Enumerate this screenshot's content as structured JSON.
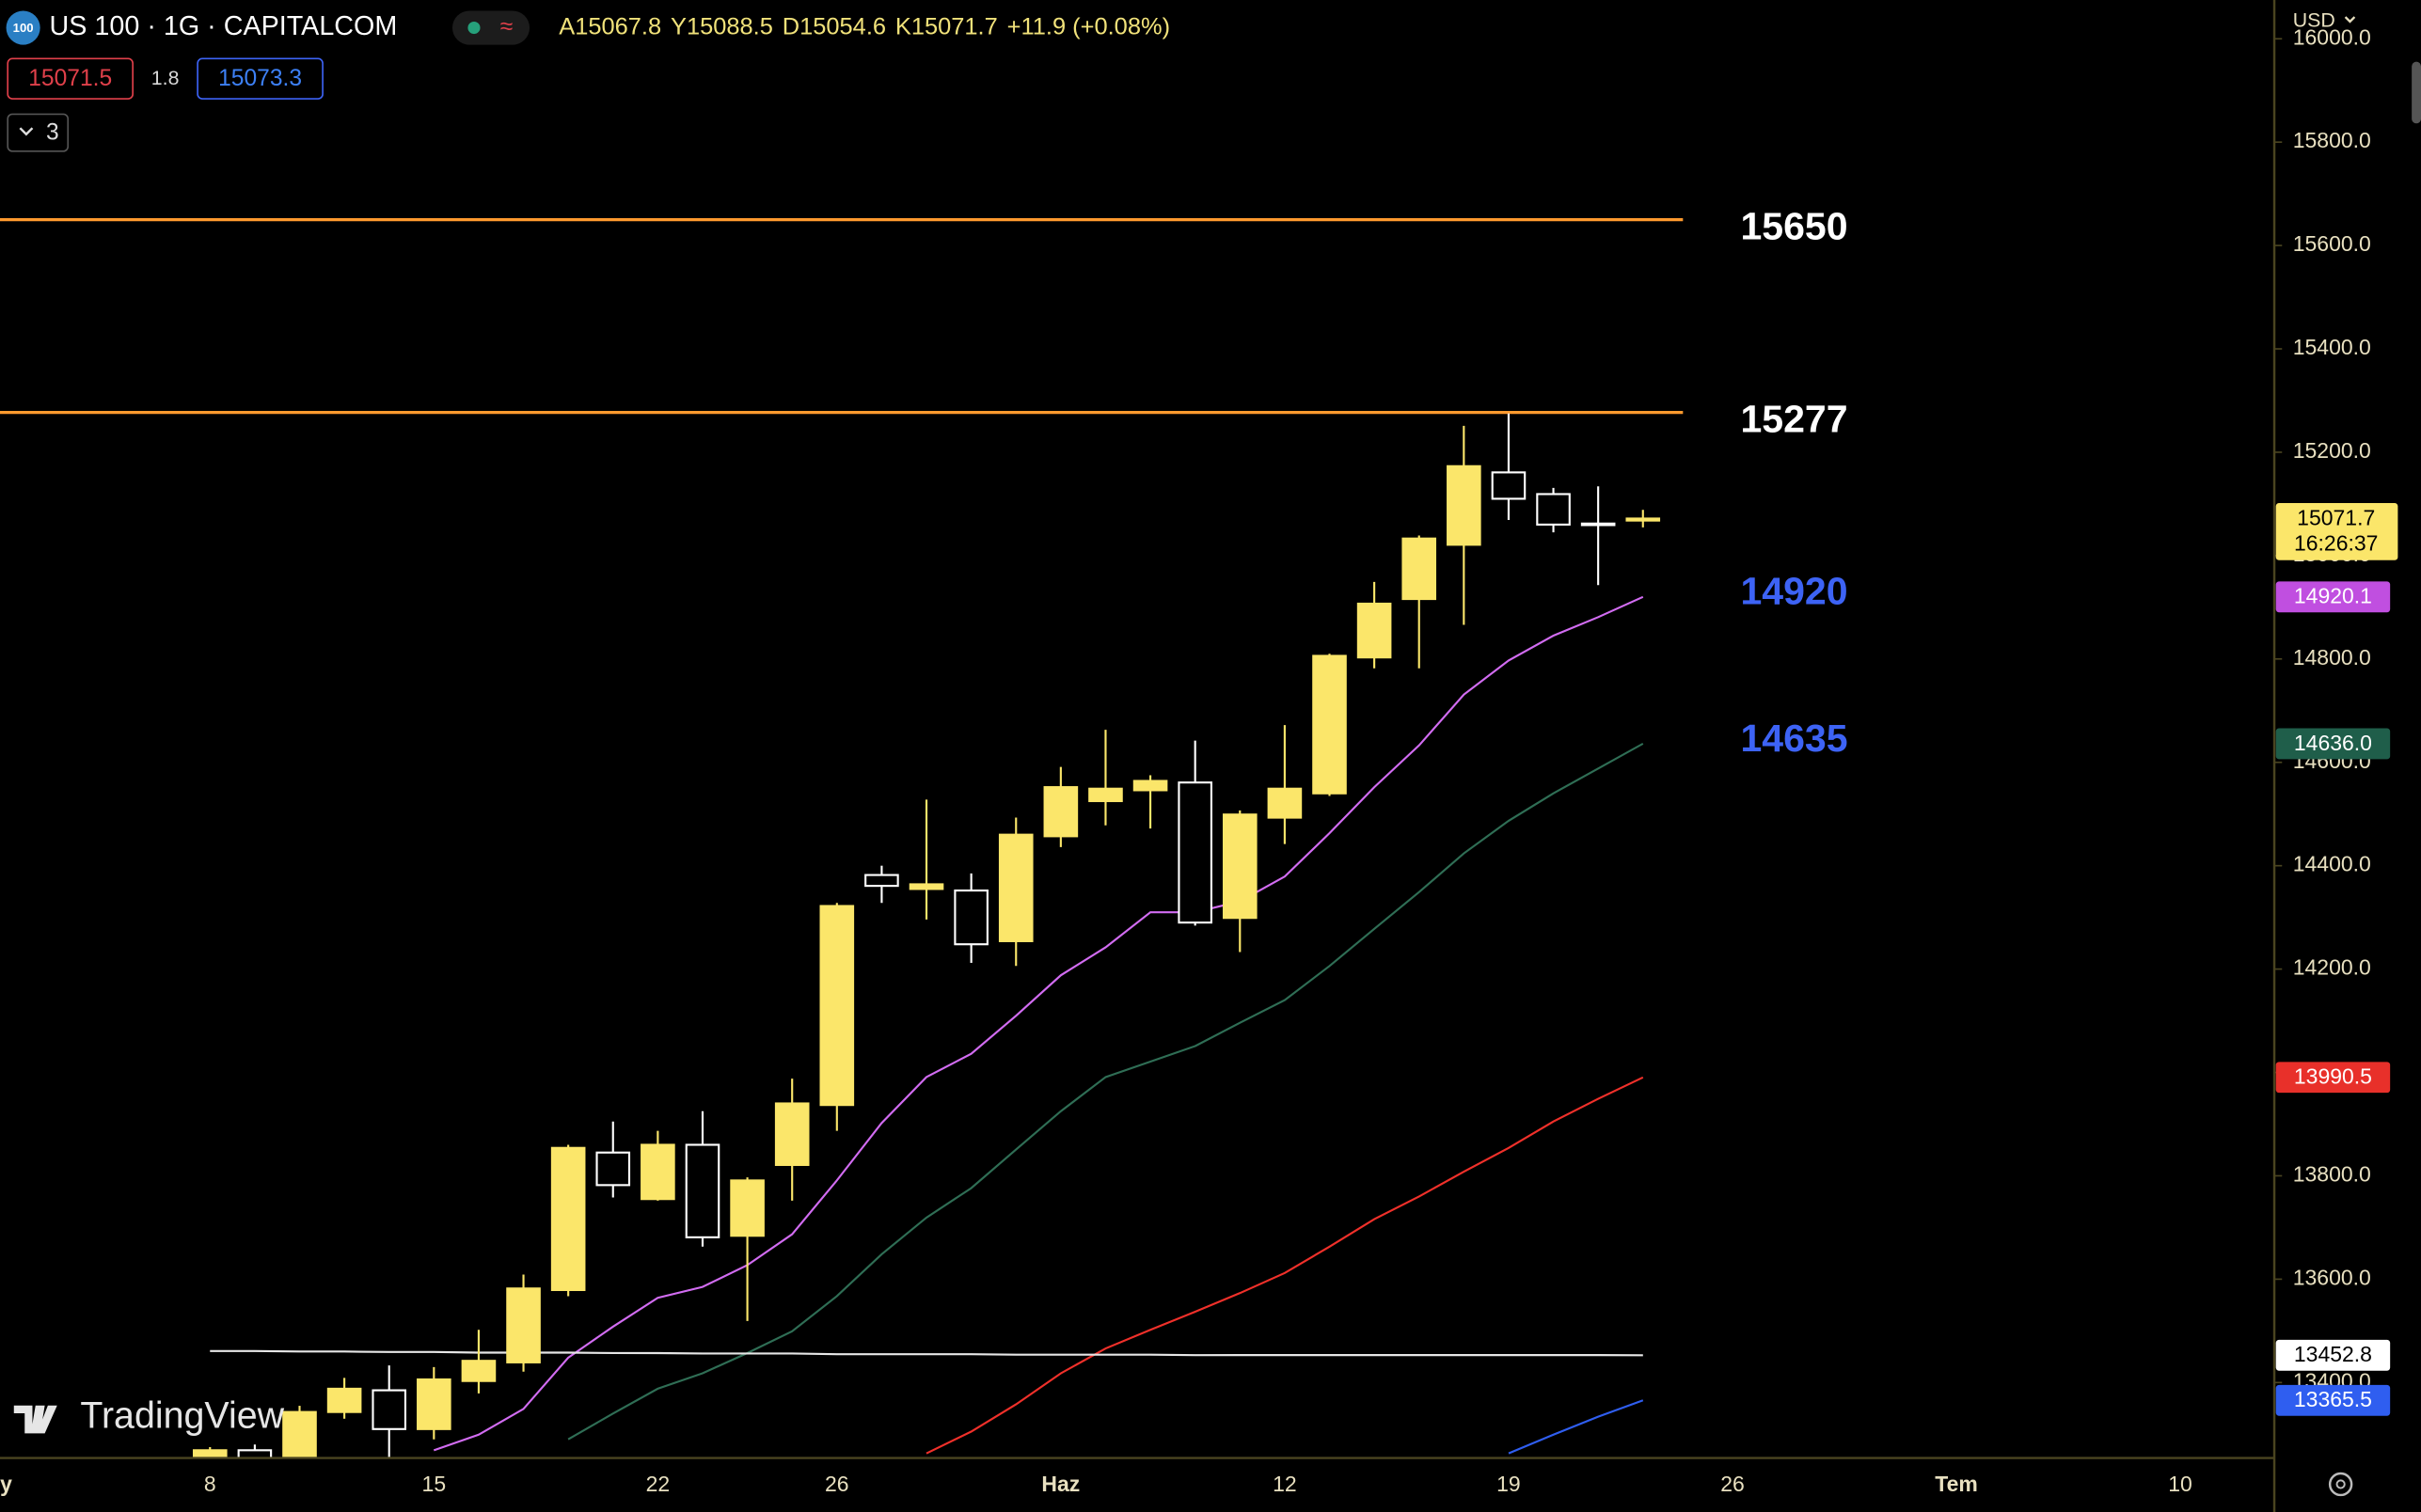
{
  "chart_data": {
    "type": "candlestick",
    "symbol": "US 100 · 1G · CAPITALCOM",
    "symbol_icon": "100",
    "legend_labels": {
      "open": "A",
      "high": "Y",
      "low": "D",
      "close": "K"
    },
    "change": "+11.9 (+0.08%)",
    "sell_price": "15071.5",
    "spread": "1.8",
    "buy_price": "15073.3",
    "indicator_count": "3",
    "currency": "USD",
    "countdown": "16:26:37",
    "brand": "TradingView",
    "categories": [
      "8",
      null,
      null,
      null,
      null,
      "15",
      null,
      null,
      null,
      null,
      "22",
      null,
      null,
      null,
      "26",
      null,
      null,
      null,
      null,
      "Haz",
      null,
      null,
      null,
      null,
      "12",
      null,
      null,
      null,
      null,
      "19",
      null,
      null,
      null
    ],
    "xlim": [
      -4.69,
      46.1
    ],
    "xticks": [
      {
        "value": -5,
        "label": "y"
      },
      {
        "value": 34,
        "label": "26"
      },
      {
        "value": 39,
        "label": "Tem"
      },
      {
        "value": 44,
        "label": "10"
      }
    ],
    "ylim": [
      13254,
      16075
    ],
    "yticks": [
      {
        "value": 13400,
        "label": "13400.0"
      },
      {
        "value": 13600,
        "label": "13600.0"
      },
      {
        "value": 13800,
        "label": "13800.0"
      },
      {
        "value": 14000,
        "label": "14000.0"
      },
      {
        "value": 14200,
        "label": "14200.0"
      },
      {
        "value": 14400,
        "label": "14400.0"
      },
      {
        "value": 14600,
        "label": "14600.0"
      },
      {
        "value": 14800,
        "label": "14800.0"
      },
      {
        "value": 15000,
        "label": "15000.0"
      },
      {
        "value": 15200,
        "label": "15200.0"
      },
      {
        "value": 15400,
        "label": "15400.0"
      },
      {
        "value": 15600,
        "label": "15600.0"
      },
      {
        "value": 15800,
        "label": "15800.0"
      },
      {
        "value": 16000,
        "label": "16000.0"
      }
    ],
    "up_color": "#fbe66a",
    "down_color": "#ffffff",
    "ohlc": {
      "open": [
        13254,
        13269,
        13250,
        13343,
        13385,
        13310,
        13403,
        13439,
        13579,
        13845,
        13755,
        13860,
        13684,
        13821,
        13937,
        14382,
        14355,
        14352,
        14254,
        14457,
        14525,
        14546,
        14561,
        14299,
        14493,
        14540,
        14803,
        14916,
        15021,
        15161,
        15119,
        15062,
        15067.8
      ],
      "high": [
        13275,
        13280,
        13355,
        13409,
        13433,
        13430,
        13502,
        13609,
        13860,
        13905,
        13887,
        13925,
        13797,
        13988,
        14328,
        14400,
        14528,
        14385,
        14493,
        14591,
        14663,
        14575,
        14642,
        14507,
        14672,
        14810,
        14949,
        15039,
        15251,
        15275,
        15131,
        15134,
        15088.5
      ],
      "low": [
        13230,
        13240,
        13240,
        13330,
        13250,
        13290,
        13379,
        13421,
        13567,
        13758,
        13752,
        13663,
        13519,
        13752,
        13887,
        14328,
        14296,
        14212,
        14206,
        14436,
        14478,
        14472,
        14284,
        14233,
        14442,
        14535,
        14782,
        14782,
        14866,
        15069,
        15045,
        14943,
        15054.6
      ],
      "close": [
        13269,
        13254,
        13343,
        13388,
        13310,
        13406,
        13442,
        13582,
        13854,
        13782,
        13860,
        13681,
        13791,
        13940,
        14322,
        14361,
        14364,
        14248,
        14460,
        14552,
        14549,
        14564,
        14290,
        14499,
        14549,
        14806,
        14907,
        15033,
        15173,
        15110,
        15060,
        15060,
        15071.7
      ]
    },
    "series": [
      {
        "color": "#d26cf2",
        "badge_color": "#c04fe0",
        "label_color": "#ffffff",
        "last_label": "14920.1",
        "values": [
          null,
          null,
          null,
          null,
          null,
          13269,
          13299,
          13349,
          13448,
          13508,
          13564,
          13585,
          13627,
          13687,
          13791,
          13902,
          13991,
          14036,
          14110,
          14188,
          14242,
          14310,
          14310,
          14331,
          14379,
          14463,
          14552,
          14633,
          14731,
          14797,
          14845,
          14881,
          14920.1
        ]
      },
      {
        "color": "#2f6e55",
        "badge_color": "#1f5e4a",
        "label_color": "#ffffff",
        "last_label": "14636.0",
        "values": [
          null,
          null,
          null,
          null,
          null,
          null,
          null,
          null,
          13290,
          13340,
          13388,
          13418,
          13457,
          13499,
          13567,
          13648,
          13719,
          13776,
          13851,
          13925,
          13991,
          14021,
          14051,
          14096,
          14140,
          14206,
          14278,
          14349,
          14424,
          14487,
          14540,
          14588,
          14636
        ]
      },
      {
        "color": "#f0302a",
        "badge_color": "#e8302a",
        "label_color": "#ffffff",
        "last_label": "13990.5",
        "values": [
          null,
          null,
          null,
          null,
          null,
          null,
          null,
          null,
          null,
          null,
          null,
          null,
          null,
          null,
          null,
          null,
          13263,
          13305,
          13358,
          13418,
          13466,
          13502,
          13537,
          13573,
          13612,
          13663,
          13716,
          13760,
          13808,
          13854,
          13905,
          13949,
          13990.5
        ]
      },
      {
        "color": "#e6e6e6",
        "badge_color": "#ffffff",
        "label_color": "#000000",
        "last_label": "13452.8",
        "values": [
          13461,
          13461,
          13460,
          13460,
          13459,
          13459,
          13458,
          13458,
          13458,
          13457,
          13457,
          13456,
          13456,
          13456,
          13455,
          13455,
          13455,
          13455,
          13454,
          13454,
          13454,
          13454,
          13453,
          13453,
          13453,
          13453,
          13453,
          13453,
          13453,
          13453,
          13453,
          13453,
          13452.8
        ]
      },
      {
        "color": "#2f5ef0",
        "badge_color": "#2f5ef0",
        "label_color": "#ffffff",
        "last_label": "13365.5",
        "values": [
          null,
          null,
          null,
          null,
          null,
          null,
          null,
          null,
          null,
          null,
          null,
          null,
          null,
          null,
          null,
          null,
          null,
          null,
          null,
          null,
          null,
          null,
          null,
          null,
          null,
          null,
          null,
          null,
          null,
          13263,
          13299,
          13334,
          13365.5
        ]
      }
    ],
    "levels": [
      {
        "value": 15650,
        "line": true,
        "color": "#ff9a2e",
        "label_color": "#ffffff"
      },
      {
        "value": 15277,
        "line": true,
        "color": "#ff9a2e",
        "label_color": "#ffffff"
      },
      {
        "value": 14920,
        "line": false,
        "color": "#3d63f5",
        "label_color": "#3d63f5"
      },
      {
        "value": 14635,
        "line": false,
        "color": "#3d63f5",
        "label_color": "#3d63f5"
      }
    ]
  }
}
